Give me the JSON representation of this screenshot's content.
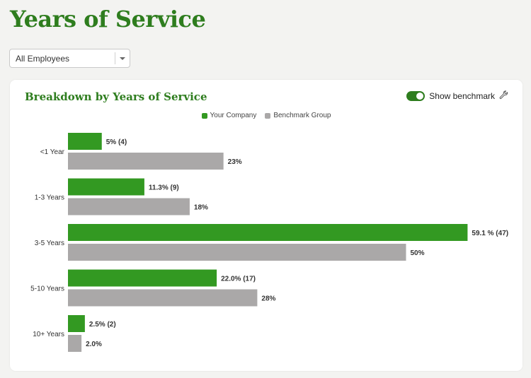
{
  "header": {
    "title": "Years of Service"
  },
  "filter": {
    "selected": "All Employees"
  },
  "card": {
    "title": "Breakdown by Years of Service",
    "toggle_label": "Show benchmark",
    "toggle_on": true
  },
  "colors": {
    "company": "#339922",
    "benchmark": "#aaa8a8",
    "accent": "#2e7d1e"
  },
  "icons": {
    "toggle_icon": "wrench-icon",
    "dropdown_icon": "chevron-down-icon"
  },
  "chart_data": {
    "type": "bar",
    "orientation": "horizontal",
    "categories": [
      "<1 Year",
      "1-3 Years",
      "3-5 Years",
      "5-10 Years",
      "10+ Years"
    ],
    "series": [
      {
        "name": "Your Company",
        "values": [
          5.0,
          11.3,
          59.1,
          22.0,
          2.5
        ],
        "labels": [
          "5% (4)",
          "11.3% (9)",
          "59.1 % (47)",
          "22.0% (17)",
          "2.5% (2)"
        ]
      },
      {
        "name": "Benchmark Group",
        "values": [
          23,
          18,
          50,
          28,
          2.0
        ],
        "labels": [
          "23%",
          "18%",
          "50%",
          "28%",
          "2.0%"
        ]
      }
    ],
    "legend_position": "top-center",
    "grid": false
  }
}
